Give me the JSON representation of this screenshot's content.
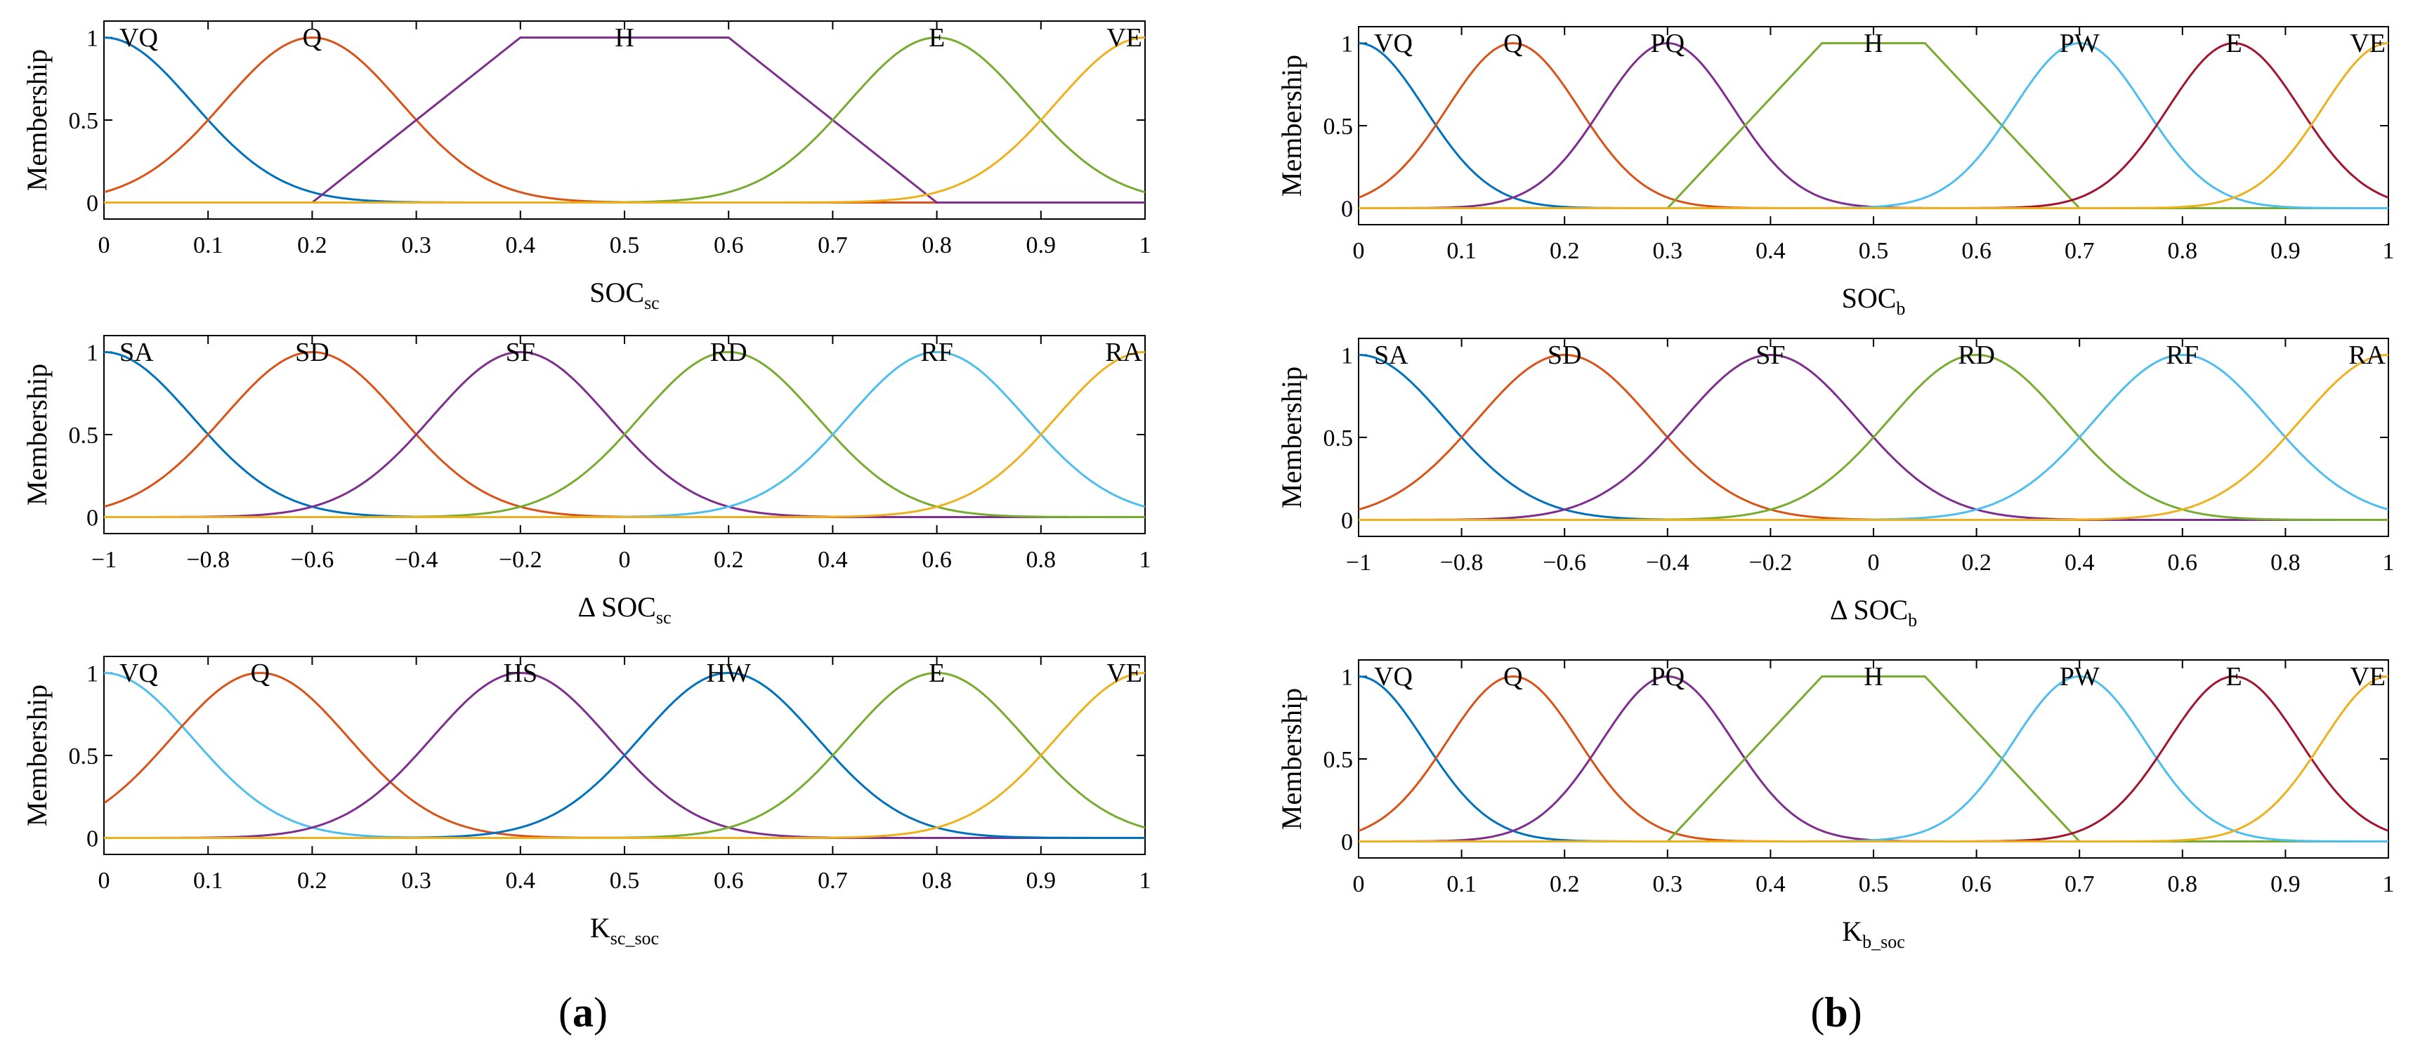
{
  "colors": {
    "blue": "#0072BD",
    "orange": "#D95319",
    "yellow": "#EDB120",
    "purple": "#7E2F8E",
    "green": "#77AC30",
    "cyan": "#4DBEEE",
    "red": "#A2142F"
  },
  "panel_labels": [
    {
      "open": "(",
      "letter": "a",
      "close": ")"
    },
    {
      "open": "(",
      "letter": "b",
      "close": ")"
    }
  ],
  "chart_data": [
    {
      "type": "line",
      "panel": "a",
      "ylabel": "Membership",
      "xlabel_main": "SOC",
      "xlabel_sub": "sc",
      "xlim": [
        0,
        1
      ],
      "ylim": [
        -0.1,
        1.1
      ],
      "xticks": [
        0,
        0.1,
        0.2,
        0.3,
        0.4,
        0.5,
        0.6,
        0.7,
        0.8,
        0.9,
        1
      ],
      "xtick_labels": [
        "0",
        "0.1",
        "0.2",
        "0.3",
        "0.4",
        "0.5",
        "0.6",
        "0.7",
        "0.8",
        "0.9",
        "1"
      ],
      "yticks": [
        0,
        0.5,
        1
      ],
      "ytick_labels": [
        "0",
        "0.5",
        "1"
      ],
      "membership_functions": [
        {
          "label": "VQ",
          "shape": "gauss",
          "center": 0.0,
          "sigma": 0.085,
          "color": "blue"
        },
        {
          "label": "Q",
          "shape": "gauss",
          "center": 0.2,
          "sigma": 0.085,
          "color": "orange"
        },
        {
          "label": "H",
          "shape": "trapezoid",
          "points": [
            0.2,
            0.4,
            0.6,
            0.8
          ],
          "color": "purple"
        },
        {
          "label": "E",
          "shape": "gauss",
          "center": 0.8,
          "sigma": 0.085,
          "color": "green"
        },
        {
          "label": "VE",
          "shape": "gauss",
          "center": 1.0,
          "sigma": 0.085,
          "color": "yellow"
        }
      ]
    },
    {
      "type": "line",
      "panel": "a",
      "ylabel": "Membership",
      "xlabel_main": "Δ SOC",
      "xlabel_sub": "sc",
      "xlim": [
        -1,
        1
      ],
      "ylim": [
        -0.1,
        1.1
      ],
      "xticks": [
        -1,
        -0.8,
        -0.6,
        -0.4,
        -0.2,
        0,
        0.2,
        0.4,
        0.6,
        0.8,
        1
      ],
      "xtick_labels": [
        "−1",
        "−0.8",
        "−0.6",
        "−0.4",
        "−0.2",
        "0",
        "0.2",
        "0.4",
        "0.6",
        "0.8",
        "1"
      ],
      "yticks": [
        0,
        0.5,
        1
      ],
      "ytick_labels": [
        "0",
        "0.5",
        "1"
      ],
      "membership_functions": [
        {
          "label": "SA",
          "shape": "gauss",
          "center": -1.0,
          "sigma": 0.17,
          "color": "blue"
        },
        {
          "label": "SD",
          "shape": "gauss",
          "center": -0.6,
          "sigma": 0.17,
          "color": "orange"
        },
        {
          "label": "SF",
          "shape": "gauss",
          "center": -0.2,
          "sigma": 0.17,
          "color": "purple"
        },
        {
          "label": "RD",
          "shape": "gauss",
          "center": 0.2,
          "sigma": 0.17,
          "color": "green"
        },
        {
          "label": "RF",
          "shape": "gauss",
          "center": 0.6,
          "sigma": 0.17,
          "color": "cyan"
        },
        {
          "label": "RA",
          "shape": "gauss",
          "center": 1.0,
          "sigma": 0.17,
          "color": "yellow"
        }
      ]
    },
    {
      "type": "line",
      "panel": "a",
      "ylabel": "Membership",
      "xlabel_main": "K",
      "xlabel_sub": "sc_soc",
      "xlim": [
        0,
        1
      ],
      "ylim": [
        -0.1,
        1.1
      ],
      "xticks": [
        0,
        0.1,
        0.2,
        0.3,
        0.4,
        0.5,
        0.6,
        0.7,
        0.8,
        0.9,
        1
      ],
      "xtick_labels": [
        "0",
        "0.1",
        "0.2",
        "0.3",
        "0.4",
        "0.5",
        "0.6",
        "0.7",
        "0.8",
        "0.9",
        "1"
      ],
      "yticks": [
        0,
        0.5,
        1
      ],
      "ytick_labels": [
        "0",
        "0.5",
        "1"
      ],
      "membership_functions": [
        {
          "label": "VQ",
          "shape": "gauss",
          "center": 0.0,
          "sigma": 0.085,
          "color": "cyan"
        },
        {
          "label": "Q",
          "shape": "gauss",
          "center": 0.15,
          "sigma": 0.085,
          "color": "orange"
        },
        {
          "label": "HS",
          "shape": "gauss",
          "center": 0.4,
          "sigma": 0.085,
          "color": "purple"
        },
        {
          "label": "HW",
          "shape": "gauss",
          "center": 0.6,
          "sigma": 0.085,
          "color": "blue"
        },
        {
          "label": "E",
          "shape": "gauss",
          "center": 0.8,
          "sigma": 0.085,
          "color": "green"
        },
        {
          "label": "VE",
          "shape": "gauss",
          "center": 1.0,
          "sigma": 0.085,
          "color": "yellow"
        }
      ]
    },
    {
      "type": "line",
      "panel": "b",
      "ylabel": "Membership",
      "xlabel_main": "SOC",
      "xlabel_sub": "b",
      "xlim": [
        0,
        1
      ],
      "ylim": [
        -0.1,
        1.1
      ],
      "xticks": [
        0,
        0.1,
        0.2,
        0.3,
        0.4,
        0.5,
        0.6,
        0.7,
        0.8,
        0.9,
        1
      ],
      "xtick_labels": [
        "0",
        "0.1",
        "0.2",
        "0.3",
        "0.4",
        "0.5",
        "0.6",
        "0.7",
        "0.8",
        "0.9",
        "1"
      ],
      "yticks": [
        0,
        0.5,
        1
      ],
      "ytick_labels": [
        "0",
        "0.5",
        "1"
      ],
      "membership_functions": [
        {
          "label": "VQ",
          "shape": "gauss",
          "center": 0.0,
          "sigma": 0.064,
          "color": "blue"
        },
        {
          "label": "Q",
          "shape": "gauss",
          "center": 0.15,
          "sigma": 0.064,
          "color": "orange"
        },
        {
          "label": "PQ",
          "shape": "gauss",
          "center": 0.3,
          "sigma": 0.064,
          "color": "purple"
        },
        {
          "label": "H",
          "shape": "trapezoid",
          "points": [
            0.3,
            0.45,
            0.55,
            0.7
          ],
          "color": "green"
        },
        {
          "label": "PW",
          "shape": "gauss",
          "center": 0.7,
          "sigma": 0.064,
          "color": "cyan"
        },
        {
          "label": "E",
          "shape": "gauss",
          "center": 0.85,
          "sigma": 0.064,
          "color": "red"
        },
        {
          "label": "VE",
          "shape": "gauss",
          "center": 1.0,
          "sigma": 0.064,
          "color": "yellow"
        }
      ]
    },
    {
      "type": "line",
      "panel": "b",
      "ylabel": "Membership",
      "xlabel_main": "Δ SOC",
      "xlabel_sub": "b",
      "xlim": [
        -1,
        1
      ],
      "ylim": [
        -0.1,
        1.1
      ],
      "xticks": [
        -1,
        -0.8,
        -0.6,
        -0.4,
        -0.2,
        0,
        0.2,
        0.4,
        0.6,
        0.8,
        1
      ],
      "xtick_labels": [
        "−1",
        "−0.8",
        "−0.6",
        "−0.4",
        "−0.2",
        "0",
        "0.2",
        "0.4",
        "0.6",
        "0.8",
        "1"
      ],
      "yticks": [
        0,
        0.5,
        1
      ],
      "ytick_labels": [
        "0",
        "0.5",
        "1"
      ],
      "membership_functions": [
        {
          "label": "SA",
          "shape": "gauss",
          "center": -1.0,
          "sigma": 0.17,
          "color": "blue"
        },
        {
          "label": "SD",
          "shape": "gauss",
          "center": -0.6,
          "sigma": 0.17,
          "color": "orange"
        },
        {
          "label": "SF",
          "shape": "gauss",
          "center": -0.2,
          "sigma": 0.17,
          "color": "purple"
        },
        {
          "label": "RD",
          "shape": "gauss",
          "center": 0.2,
          "sigma": 0.17,
          "color": "green"
        },
        {
          "label": "RF",
          "shape": "gauss",
          "center": 0.6,
          "sigma": 0.17,
          "color": "cyan"
        },
        {
          "label": "RA",
          "shape": "gauss",
          "center": 1.0,
          "sigma": 0.17,
          "color": "yellow"
        }
      ]
    },
    {
      "type": "line",
      "panel": "b",
      "ylabel": "Membership",
      "xlabel_main": "K",
      "xlabel_sub": "b_soc",
      "xlim": [
        0,
        1
      ],
      "ylim": [
        -0.1,
        1.1
      ],
      "xticks": [
        0,
        0.1,
        0.2,
        0.3,
        0.4,
        0.5,
        0.6,
        0.7,
        0.8,
        0.9,
        1
      ],
      "xtick_labels": [
        "0",
        "0.1",
        "0.2",
        "0.3",
        "0.4",
        "0.5",
        "0.6",
        "0.7",
        "0.8",
        "0.9",
        "1"
      ],
      "yticks": [
        0,
        0.5,
        1
      ],
      "ytick_labels": [
        "0",
        "0.5",
        "1"
      ],
      "membership_functions": [
        {
          "label": "VQ",
          "shape": "gauss",
          "center": 0.0,
          "sigma": 0.064,
          "color": "blue"
        },
        {
          "label": "Q",
          "shape": "gauss",
          "center": 0.15,
          "sigma": 0.064,
          "color": "orange"
        },
        {
          "label": "PQ",
          "shape": "gauss",
          "center": 0.3,
          "sigma": 0.064,
          "color": "purple"
        },
        {
          "label": "H",
          "shape": "trapezoid",
          "points": [
            0.3,
            0.45,
            0.55,
            0.7
          ],
          "color": "green"
        },
        {
          "label": "PW",
          "shape": "gauss",
          "center": 0.7,
          "sigma": 0.064,
          "color": "cyan"
        },
        {
          "label": "E",
          "shape": "gauss",
          "center": 0.85,
          "sigma": 0.064,
          "color": "red"
        },
        {
          "label": "VE",
          "shape": "gauss",
          "center": 1.0,
          "sigma": 0.064,
          "color": "yellow"
        }
      ]
    }
  ]
}
